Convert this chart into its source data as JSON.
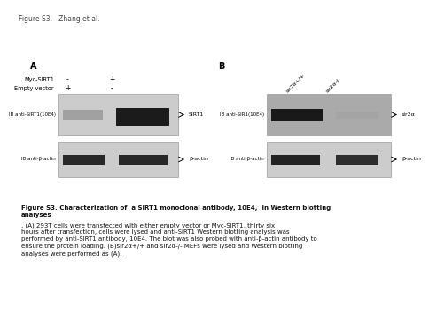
{
  "fig_title": "Figure S3.   Zhang et al.",
  "panel_A_label": "A",
  "panel_B_label": "B",
  "row1_label": "Myc-SIRT1",
  "row1_vals": [
    "-",
    "+"
  ],
  "row2_label": "Empty vector",
  "row2_vals": [
    "+",
    "-"
  ],
  "pA_ib1_label": "IB anti-SIRT1(10E4)",
  "pA_ib1_arrow": "← SIRT1",
  "pA_ib2_label": "IB anti-β-actin",
  "pA_ib2_arrow": "← β-actin",
  "pB_col1": "sir2α+/+",
  "pB_col2": "sir2α-/-",
  "pB_ib1_label": "IB anti-SIR1(10E4)",
  "pB_ib1_arrow": "← sir2α",
  "pB_ib2_label": "IB anti-β-actin",
  "pB_ib2_arrow": "← β-actin",
  "caption_bold": "Figure S3. Characterization of  a SIRT1 monoclonal antibody, 10E4,  in Western blotting\nanalyses",
  "caption_normal": ". (A) 293T cells were transfected with either empty vector or Myc-SIRT1, thirty six\nhours after transfection, cells were lysed and anti-SIRT1 Western blotting analysis was\nperformed by anti-SIRT1 antibody, 10E4. The blot was also probed with anti-β-actin antibody to\nensure the protein loading. (B)sir2α+/+ and sir2α-/- MEFs were lysed and Western blotting\nanalyses were performed as (A).",
  "bg": "#ffffff",
  "blot_light": "#cccccc",
  "blot_dark": "#aaaaaa",
  "band_dark": "#111111",
  "band_mid": "#777777"
}
